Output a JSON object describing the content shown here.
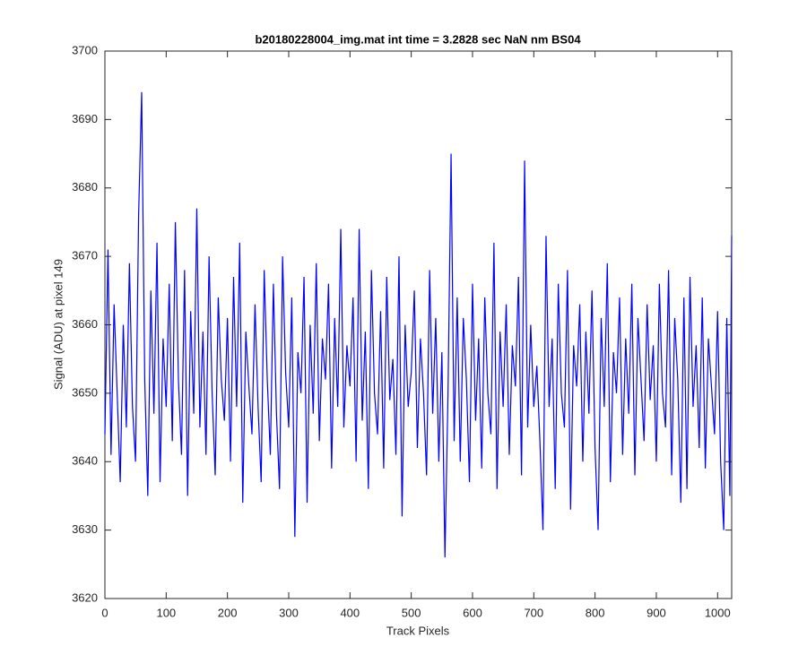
{
  "chart_data": {
    "type": "line",
    "title": "b20180228004_img.mat int time = 3.2828 sec  NaN nm BS04",
    "x_label": "Track Pixels",
    "y_label": "Signal (ADU) at pixel 149",
    "color": "#0000ff",
    "xlim": [
      0,
      1023
    ],
    "ylim": [
      3620,
      3700
    ],
    "xticks": [
      0,
      100,
      200,
      300,
      400,
      500,
      600,
      700,
      800,
      900,
      1000
    ],
    "yticks": [
      3620,
      3630,
      3640,
      3650,
      3660,
      3670,
      3680,
      3690,
      3700
    ],
    "x": [
      0,
      5,
      10,
      15,
      20,
      25,
      30,
      35,
      40,
      45,
      50,
      55,
      60,
      65,
      70,
      75,
      80,
      85,
      90,
      95,
      100,
      105,
      110,
      115,
      120,
      125,
      130,
      135,
      140,
      145,
      150,
      155,
      160,
      165,
      170,
      175,
      180,
      185,
      190,
      195,
      200,
      205,
      210,
      215,
      220,
      225,
      230,
      235,
      240,
      245,
      250,
      255,
      260,
      265,
      270,
      275,
      280,
      285,
      290,
      295,
      300,
      305,
      310,
      315,
      320,
      325,
      330,
      335,
      340,
      345,
      350,
      355,
      360,
      365,
      370,
      375,
      380,
      385,
      390,
      395,
      400,
      405,
      410,
      415,
      420,
      425,
      430,
      435,
      440,
      445,
      450,
      455,
      460,
      465,
      470,
      475,
      480,
      485,
      490,
      495,
      500,
      505,
      510,
      515,
      520,
      525,
      530,
      535,
      540,
      545,
      550,
      555,
      560,
      565,
      570,
      575,
      580,
      585,
      590,
      595,
      600,
      605,
      610,
      615,
      620,
      625,
      630,
      635,
      640,
      645,
      650,
      655,
      660,
      665,
      670,
      675,
      680,
      685,
      690,
      695,
      700,
      705,
      710,
      715,
      720,
      725,
      730,
      735,
      740,
      745,
      750,
      755,
      760,
      765,
      770,
      775,
      780,
      785,
      790,
      795,
      800,
      805,
      810,
      815,
      820,
      825,
      830,
      835,
      840,
      845,
      850,
      855,
      860,
      865,
      870,
      875,
      880,
      885,
      890,
      895,
      900,
      905,
      910,
      915,
      920,
      925,
      930,
      935,
      940,
      945,
      950,
      955,
      960,
      965,
      970,
      975,
      980,
      985,
      990,
      995,
      1000,
      1005,
      1010,
      1015,
      1020,
      1023
    ],
    "values": [
      3644,
      3671,
      3641,
      3663,
      3650,
      3637,
      3660,
      3645,
      3669,
      3648,
      3640,
      3676,
      3694,
      3652,
      3635,
      3665,
      3647,
      3672,
      3637,
      3658,
      3648,
      3666,
      3643,
      3675,
      3652,
      3641,
      3668,
      3635,
      3662,
      3647,
      3677,
      3645,
      3659,
      3641,
      3670,
      3650,
      3638,
      3664,
      3652,
      3646,
      3661,
      3640,
      3667,
      3648,
      3672,
      3634,
      3659,
      3651,
      3644,
      3663,
      3648,
      3637,
      3668,
      3652,
      3641,
      3666,
      3647,
      3636,
      3670,
      3653,
      3645,
      3664,
      3629,
      3656,
      3650,
      3667,
      3634,
      3660,
      3647,
      3669,
      3643,
      3658,
      3652,
      3666,
      3639,
      3661,
      3648,
      3674,
      3645,
      3657,
      3651,
      3664,
      3640,
      3674,
      3646,
      3659,
      3636,
      3668,
      3650,
      3644,
      3662,
      3639,
      3667,
      3649,
      3655,
      3641,
      3670,
      3632,
      3660,
      3648,
      3653,
      3665,
      3642,
      3658,
      3650,
      3638,
      3668,
      3647,
      3661,
      3640,
      3656,
      3626,
      3650,
      3685,
      3643,
      3664,
      3640,
      3661,
      3652,
      3637,
      3666,
      3646,
      3658,
      3639,
      3664,
      3650,
      3644,
      3672,
      3636,
      3659,
      3648,
      3663,
      3641,
      3657,
      3651,
      3667,
      3638,
      3684,
      3645,
      3660,
      3648,
      3654,
      3643,
      3630,
      3673,
      3648,
      3658,
      3636,
      3666,
      3650,
      3645,
      3668,
      3633,
      3657,
      3651,
      3663,
      3640,
      3659,
      3647,
      3665,
      3642,
      3630,
      3661,
      3648,
      3669,
      3637,
      3656,
      3650,
      3664,
      3641,
      3658,
      3647,
      3666,
      3638,
      3661,
      3652,
      3643,
      3663,
      3649,
      3657,
      3640,
      3666,
      3650,
      3645,
      3668,
      3638,
      3661,
      3652,
      3634,
      3664,
      3636,
      3667,
      3648,
      3657,
      3642,
      3664,
      3639,
      3658,
      3651,
      3644,
      3662,
      3640,
      3630,
      3661,
      3635,
      3673
    ]
  }
}
